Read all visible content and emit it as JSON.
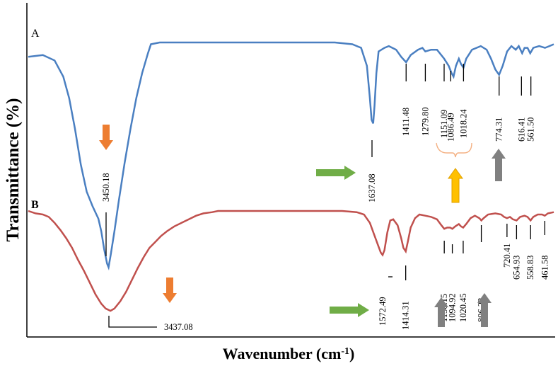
{
  "chart_data": {
    "type": "line",
    "title": "",
    "xlabel": "Wavenumber (cm",
    "xlabel_sup": "-1",
    "xlabel_suffix": ")",
    "ylabel": "Transmittance (%)",
    "x_direction": "decreasing",
    "xlim": [
      4000,
      400
    ],
    "y_units": "arbitrary (offset)",
    "grid": false,
    "legend": "none",
    "series": [
      {
        "name": "A",
        "color": "#4a7fc1",
        "points": [
          [
            4000,
            0.85
          ],
          [
            3900,
            0.86
          ],
          [
            3820,
            0.83
          ],
          [
            3760,
            0.74
          ],
          [
            3720,
            0.62
          ],
          [
            3680,
            0.45
          ],
          [
            3640,
            0.25
          ],
          [
            3600,
            0.1
          ],
          [
            3560,
            0.02
          ],
          [
            3520,
            -0.05
          ],
          [
            3500,
            -0.12
          ],
          [
            3480,
            -0.22
          ],
          [
            3460,
            -0.3
          ],
          [
            3450.18,
            -0.32
          ],
          [
            3435,
            -0.25
          ],
          [
            3410,
            -0.12
          ],
          [
            3380,
            0.05
          ],
          [
            3340,
            0.26
          ],
          [
            3300,
            0.45
          ],
          [
            3260,
            0.62
          ],
          [
            3220,
            0.76
          ],
          [
            3180,
            0.87
          ],
          [
            3160,
            0.92
          ],
          [
            3100,
            0.93
          ],
          [
            2500,
            0.93
          ],
          [
            1900,
            0.93
          ],
          [
            1780,
            0.92
          ],
          [
            1720,
            0.9
          ],
          [
            1680,
            0.8
          ],
          [
            1660,
            0.62
          ],
          [
            1648,
            0.5
          ],
          [
            1637.08,
            0.48
          ],
          [
            1628,
            0.58
          ],
          [
            1615,
            0.76
          ],
          [
            1600,
            0.88
          ],
          [
            1560,
            0.9
          ],
          [
            1530,
            0.91
          ],
          [
            1480,
            0.89
          ],
          [
            1445,
            0.85
          ],
          [
            1411.48,
            0.82
          ],
          [
            1380,
            0.86
          ],
          [
            1330,
            0.89
          ],
          [
            1300,
            0.9
          ],
          [
            1279.8,
            0.88
          ],
          [
            1240,
            0.89
          ],
          [
            1200,
            0.89
          ],
          [
            1151.09,
            0.84
          ],
          [
            1120,
            0.8
          ],
          [
            1100,
            0.76
          ],
          [
            1086.49,
            0.74
          ],
          [
            1070,
            0.8
          ],
          [
            1050,
            0.84
          ],
          [
            1035,
            0.81
          ],
          [
            1018.24,
            0.79
          ],
          [
            1000,
            0.84
          ],
          [
            960,
            0.89
          ],
          [
            900,
            0.91
          ],
          [
            860,
            0.89
          ],
          [
            830,
            0.84
          ],
          [
            800,
            0.78
          ],
          [
            774.31,
            0.75
          ],
          [
            750,
            0.8
          ],
          [
            720,
            0.88
          ],
          [
            690,
            0.91
          ],
          [
            660,
            0.89
          ],
          [
            640,
            0.91
          ],
          [
            616.41,
            0.87
          ],
          [
            600,
            0.9
          ],
          [
            580,
            0.9
          ],
          [
            561.5,
            0.87
          ],
          [
            540,
            0.9
          ],
          [
            500,
            0.91
          ],
          [
            460,
            0.9
          ],
          [
            430,
            0.91
          ],
          [
            400,
            0.92
          ]
        ]
      },
      {
        "name": "B",
        "color": "#c0504d",
        "points": [
          [
            4000,
            0.38
          ],
          [
            3950,
            0.36
          ],
          [
            3900,
            0.35
          ],
          [
            3860,
            0.33
          ],
          [
            3820,
            0.28
          ],
          [
            3780,
            0.22
          ],
          [
            3740,
            0.15
          ],
          [
            3700,
            0.07
          ],
          [
            3660,
            -0.03
          ],
          [
            3620,
            -0.12
          ],
          [
            3580,
            -0.22
          ],
          [
            3540,
            -0.32
          ],
          [
            3500,
            -0.4
          ],
          [
            3470,
            -0.44
          ],
          [
            3437.08,
            -0.46
          ],
          [
            3410,
            -0.44
          ],
          [
            3370,
            -0.38
          ],
          [
            3330,
            -0.3
          ],
          [
            3290,
            -0.2
          ],
          [
            3250,
            -0.1
          ],
          [
            3210,
            -0.01
          ],
          [
            3170,
            0.07
          ],
          [
            3130,
            0.12
          ],
          [
            3090,
            0.17
          ],
          [
            3050,
            0.21
          ],
          [
            3000,
            0.25
          ],
          [
            2950,
            0.28
          ],
          [
            2900,
            0.31
          ],
          [
            2850,
            0.34
          ],
          [
            2800,
            0.36
          ],
          [
            2740,
            0.37
          ],
          [
            2700,
            0.38
          ],
          [
            2600,
            0.38
          ],
          [
            2400,
            0.38
          ],
          [
            2200,
            0.38
          ],
          [
            2000,
            0.38
          ],
          [
            1850,
            0.38
          ],
          [
            1750,
            0.37
          ],
          [
            1700,
            0.35
          ],
          [
            1660,
            0.28
          ],
          [
            1630,
            0.18
          ],
          [
            1600,
            0.08
          ],
          [
            1585,
            0.03
          ],
          [
            1572.49,
            0.01
          ],
          [
            1560,
            0.05
          ],
          [
            1540,
            0.2
          ],
          [
            1520,
            0.3
          ],
          [
            1500,
            0.31
          ],
          [
            1470,
            0.26
          ],
          [
            1445,
            0.15
          ],
          [
            1430,
            0.07
          ],
          [
            1414.31,
            0.04
          ],
          [
            1400,
            0.12
          ],
          [
            1380,
            0.24
          ],
          [
            1350,
            0.32
          ],
          [
            1320,
            0.35
          ],
          [
            1280,
            0.34
          ],
          [
            1240,
            0.33
          ],
          [
            1200,
            0.31
          ],
          [
            1170,
            0.26
          ],
          [
            1150.15,
            0.23
          ],
          [
            1130,
            0.24
          ],
          [
            1110,
            0.24
          ],
          [
            1094.92,
            0.23
          ],
          [
            1075,
            0.25
          ],
          [
            1050,
            0.27
          ],
          [
            1035,
            0.25
          ],
          [
            1020.45,
            0.24
          ],
          [
            1000,
            0.27
          ],
          [
            970,
            0.32
          ],
          [
            940,
            0.34
          ],
          [
            910,
            0.32
          ],
          [
            896.22,
            0.3
          ],
          [
            880,
            0.32
          ],
          [
            850,
            0.35
          ],
          [
            800,
            0.36
          ],
          [
            760,
            0.35
          ],
          [
            740,
            0.33
          ],
          [
            720.41,
            0.32
          ],
          [
            700,
            0.33
          ],
          [
            680,
            0.31
          ],
          [
            654.93,
            0.3
          ],
          [
            630,
            0.33
          ],
          [
            600,
            0.34
          ],
          [
            580,
            0.33
          ],
          [
            558.83,
            0.3
          ],
          [
            540,
            0.33
          ],
          [
            510,
            0.35
          ],
          [
            480,
            0.35
          ],
          [
            461.58,
            0.34
          ],
          [
            440,
            0.36
          ],
          [
            400,
            0.37
          ]
        ]
      }
    ],
    "peak_labels": [
      {
        "series": "A",
        "value": "3450.18",
        "wn": 3450.18
      },
      {
        "series": "A",
        "value": "1637.08",
        "wn": 1637.08
      },
      {
        "series": "A",
        "value": "1411.48",
        "wn": 1411.48
      },
      {
        "series": "A",
        "value": "1279.80",
        "wn": 1279.8
      },
      {
        "series": "A",
        "value": "1151.09",
        "wn": 1151.09
      },
      {
        "series": "A",
        "value": "1086.49",
        "wn": 1086.49
      },
      {
        "series": "A",
        "value": "1018.24",
        "wn": 1018.24
      },
      {
        "series": "A",
        "value": "774.31",
        "wn": 774.31
      },
      {
        "series": "A",
        "value": "616.41",
        "wn": 616.41
      },
      {
        "series": "A",
        "value": "561.50",
        "wn": 561.5
      },
      {
        "series": "B",
        "value": "3437.08",
        "wn": 3437.08
      },
      {
        "series": "B",
        "value": "1572.49",
        "wn": 1572.49
      },
      {
        "series": "B",
        "value": "1414.31",
        "wn": 1414.31
      },
      {
        "series": "B",
        "value": "1150.15",
        "wn": 1150.15
      },
      {
        "series": "B",
        "value": "1094.92",
        "wn": 1094.92
      },
      {
        "series": "B",
        "value": "1020.45",
        "wn": 1020.45
      },
      {
        "series": "B",
        "value": "896.22",
        "wn": 896.22
      },
      {
        "series": "B",
        "value": "720.41",
        "wn": 720.41
      },
      {
        "series": "B",
        "value": "654.93",
        "wn": 654.93
      },
      {
        "series": "B",
        "value": "558.83",
        "wn": 558.83
      },
      {
        "series": "B",
        "value": "461.58",
        "wn": 461.58
      }
    ],
    "arrow_colors": {
      "orange": "#ed7d31",
      "green": "#70ad47",
      "gold": "#ffc000",
      "gray": "#808080",
      "bracket": "#f4b183"
    }
  }
}
